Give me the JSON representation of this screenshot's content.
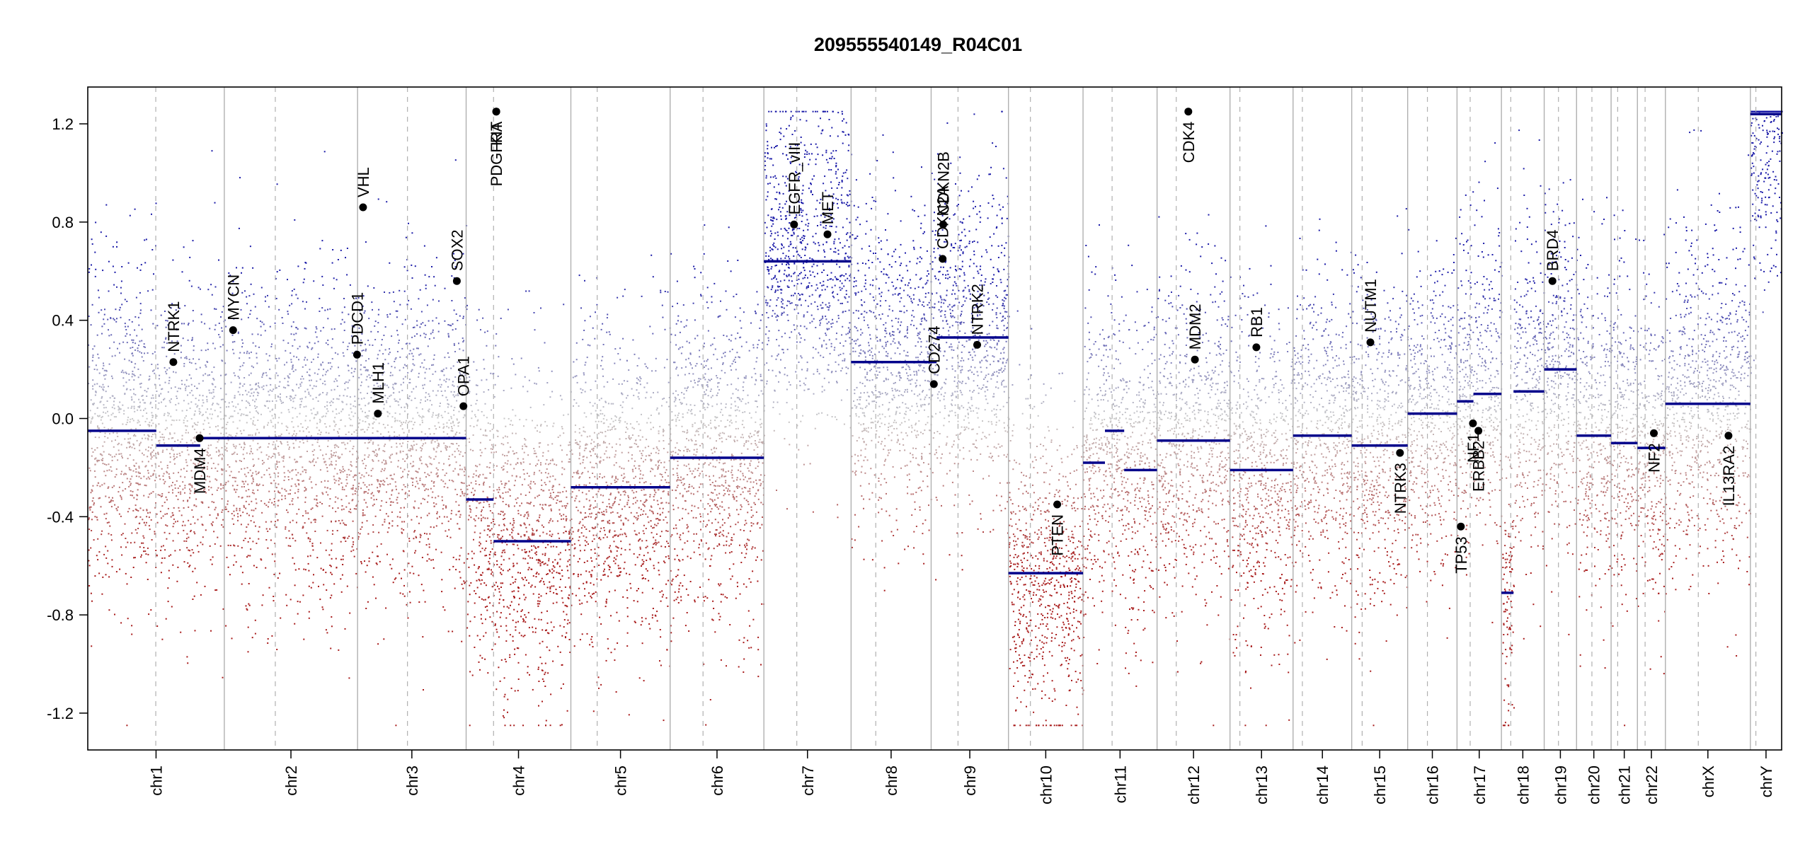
{
  "chart_data": {
    "type": "scatter",
    "title": "209555540149_R04C01",
    "xlabel": "",
    "ylabel": "",
    "ylim": [
      -1.35,
      1.35
    ],
    "yticks": [
      1.2,
      0.8,
      0.4,
      0.0,
      -0.4,
      -0.8,
      -1.2
    ],
    "ytick_labels": [
      "1.2",
      "0.8",
      "0.4",
      "0.0",
      "-0.4",
      "-0.8",
      "-1.2"
    ],
    "colors": {
      "gain": "#1a1aa8",
      "loss": "#a81a1a",
      "segment": "#00008b",
      "neutral": "#c8c8c8",
      "divider": "#b0b0b0"
    },
    "chromosomes": [
      {
        "name": "chr1",
        "length": 249,
        "centromere": 124,
        "segments": [
          {
            "start": 0,
            "end": 125,
            "value": -0.05
          },
          {
            "start": 125,
            "end": 205,
            "value": -0.11
          },
          {
            "start": 205,
            "end": 249,
            "value": -0.08
          }
        ]
      },
      {
        "name": "chr2",
        "length": 243,
        "centromere": 93,
        "segments": [
          {
            "start": 0,
            "end": 243,
            "value": -0.08
          }
        ]
      },
      {
        "name": "chr3",
        "length": 198,
        "centromere": 91,
        "segments": [
          {
            "start": 0,
            "end": 198,
            "value": -0.08
          }
        ]
      },
      {
        "name": "chr4",
        "length": 191,
        "centromere": 50,
        "segments": [
          {
            "start": 0,
            "end": 50,
            "value": -0.33
          },
          {
            "start": 50,
            "end": 191,
            "value": -0.5
          }
        ]
      },
      {
        "name": "chr5",
        "length": 181,
        "centromere": 48,
        "segments": [
          {
            "start": 0,
            "end": 181,
            "value": -0.28
          }
        ]
      },
      {
        "name": "chr6",
        "length": 171,
        "centromere": 60,
        "segments": [
          {
            "start": 0,
            "end": 171,
            "value": -0.16
          }
        ]
      },
      {
        "name": "chr7",
        "length": 159,
        "centromere": 60,
        "segments": [
          {
            "start": 0,
            "end": 159,
            "value": 0.64
          }
        ]
      },
      {
        "name": "chr8",
        "length": 146,
        "centromere": 45,
        "segments": [
          {
            "start": 0,
            "end": 146,
            "value": 0.23
          }
        ]
      },
      {
        "name": "chr9",
        "length": 141,
        "centromere": 49,
        "segments": [
          {
            "start": 0,
            "end": 10,
            "value": 0.23
          },
          {
            "start": 10,
            "end": 141,
            "value": 0.33
          }
        ]
      },
      {
        "name": "chr10",
        "length": 136,
        "centromere": 40,
        "segments": [
          {
            "start": 0,
            "end": 136,
            "value": -0.63
          }
        ]
      },
      {
        "name": "chr11",
        "length": 135,
        "centromere": 53,
        "segments": [
          {
            "start": 0,
            "end": 40,
            "value": -0.18
          },
          {
            "start": 40,
            "end": 75,
            "value": -0.05
          },
          {
            "start": 75,
            "end": 135,
            "value": -0.21
          }
        ]
      },
      {
        "name": "chr12",
        "length": 133,
        "centromere": 35,
        "segments": [
          {
            "start": 0,
            "end": 133,
            "value": -0.09
          }
        ]
      },
      {
        "name": "chr13",
        "length": 115,
        "centromere": 18,
        "segments": [
          {
            "start": 0,
            "end": 115,
            "value": -0.21
          }
        ]
      },
      {
        "name": "chr14",
        "length": 107,
        "centromere": 17,
        "segments": [
          {
            "start": 0,
            "end": 107,
            "value": -0.07
          }
        ]
      },
      {
        "name": "chr15",
        "length": 102,
        "centromere": 19,
        "segments": [
          {
            "start": 0,
            "end": 102,
            "value": -0.11
          }
        ]
      },
      {
        "name": "chr16",
        "length": 90,
        "centromere": 36,
        "segments": [
          {
            "start": 0,
            "end": 90,
            "value": 0.02
          }
        ]
      },
      {
        "name": "chr17",
        "length": 81,
        "centromere": 24,
        "segments": [
          {
            "start": 0,
            "end": 30,
            "value": 0.07
          },
          {
            "start": 30,
            "end": 81,
            "value": 0.1
          }
        ]
      },
      {
        "name": "chr18",
        "length": 78,
        "centromere": 17,
        "segments": [
          {
            "start": 0,
            "end": 22,
            "value": -0.71
          },
          {
            "start": 22,
            "end": 78,
            "value": 0.11
          }
        ]
      },
      {
        "name": "chr19",
        "length": 59,
        "centromere": 26,
        "segments": [
          {
            "start": 0,
            "end": 59,
            "value": 0.2
          }
        ]
      },
      {
        "name": "chr20",
        "length": 63,
        "centromere": 28,
        "segments": [
          {
            "start": 0,
            "end": 63,
            "value": -0.07
          }
        ]
      },
      {
        "name": "chr21",
        "length": 48,
        "centromere": 12,
        "segments": [
          {
            "start": 0,
            "end": 48,
            "value": -0.1
          }
        ]
      },
      {
        "name": "chr22",
        "length": 51,
        "centromere": 14,
        "segments": [
          {
            "start": 0,
            "end": 51,
            "value": -0.12
          }
        ]
      },
      {
        "name": "chrX",
        "length": 155,
        "centromere": 60,
        "segments": [
          {
            "start": 0,
            "end": 155,
            "value": 0.06
          }
        ]
      },
      {
        "name": "chrY",
        "length": 57,
        "centromere": 10,
        "segments": [
          {
            "start": 0,
            "end": 57,
            "value": 1.24
          }
        ]
      }
    ],
    "genes": [
      {
        "name": "NTRK1",
        "chrom": "chr1",
        "pos": 156,
        "value": 0.23,
        "label_side": "above"
      },
      {
        "name": "MDM4",
        "chrom": "chr1",
        "pos": 204,
        "value": -0.08,
        "label_side": "below"
      },
      {
        "name": "MYCN",
        "chrom": "chr2",
        "pos": 16,
        "value": 0.36,
        "label_side": "above"
      },
      {
        "name": "PDCD1",
        "chrom": "chr2",
        "pos": 242,
        "value": 0.26,
        "label_side": "above"
      },
      {
        "name": "VHL",
        "chrom": "chr3",
        "pos": 10,
        "value": 0.86,
        "label_side": "above"
      },
      {
        "name": "MLH1",
        "chrom": "chr3",
        "pos": 37,
        "value": 0.02,
        "label_side": "above"
      },
      {
        "name": "SOX2",
        "chrom": "chr3",
        "pos": 181,
        "value": 0.56,
        "label_side": "above"
      },
      {
        "name": "OPA1",
        "chrom": "chr3",
        "pos": 193,
        "value": 0.05,
        "label_side": "above"
      },
      {
        "name": "PDGFRA",
        "chrom": "chr4",
        "pos": 55,
        "value": 1.25,
        "label_side": "below"
      },
      {
        "name": "KIT",
        "chrom": "chr4",
        "pos": 55,
        "value": 1.25,
        "label_side": "below"
      },
      {
        "name": "EGFR_vIII",
        "chrom": "chr7",
        "pos": 55,
        "value": 0.79,
        "label_side": "above"
      },
      {
        "name": "MET",
        "chrom": "chr7",
        "pos": 116,
        "value": 0.75,
        "label_side": "above"
      },
      {
        "name": "CD274",
        "chrom": "chr9",
        "pos": 5,
        "value": 0.14,
        "label_side": "above"
      },
      {
        "name": "CDKN2A",
        "chrom": "chr9",
        "pos": 21,
        "value": 0.65,
        "label_side": "above"
      },
      {
        "name": "CDKN2B",
        "chrom": "chr9",
        "pos": 22,
        "value": 0.79,
        "label_side": "above"
      },
      {
        "name": "NTRK2",
        "chrom": "chr9",
        "pos": 84,
        "value": 0.3,
        "label_side": "above"
      },
      {
        "name": "PTEN",
        "chrom": "chr10",
        "pos": 89,
        "value": -0.35,
        "label_side": "below"
      },
      {
        "name": "CDK4",
        "chrom": "chr12",
        "pos": 57,
        "value": 1.25,
        "label_side": "below"
      },
      {
        "name": "MDM2",
        "chrom": "chr12",
        "pos": 69,
        "value": 0.24,
        "label_side": "above"
      },
      {
        "name": "RB1",
        "chrom": "chr13",
        "pos": 48,
        "value": 0.29,
        "label_side": "above"
      },
      {
        "name": "NUTM1",
        "chrom": "chr15",
        "pos": 34,
        "value": 0.31,
        "label_side": "above"
      },
      {
        "name": "NTRK3",
        "chrom": "chr15",
        "pos": 88,
        "value": -0.14,
        "label_side": "below"
      },
      {
        "name": "TP53",
        "chrom": "chr17",
        "pos": 7,
        "value": -0.44,
        "label_side": "below"
      },
      {
        "name": "NF1",
        "chrom": "chr17",
        "pos": 29,
        "value": -0.02,
        "label_side": "below"
      },
      {
        "name": "ERBB2",
        "chrom": "chr17",
        "pos": 39,
        "value": -0.05,
        "label_side": "below"
      },
      {
        "name": "BRD4",
        "chrom": "chr19",
        "pos": 15,
        "value": 0.56,
        "label_side": "above"
      },
      {
        "name": "NF2",
        "chrom": "chr22",
        "pos": 30,
        "value": -0.06,
        "label_side": "below"
      },
      {
        "name": "IL13RA2",
        "chrom": "chrX",
        "pos": 115,
        "value": -0.07,
        "label_side": "below"
      }
    ]
  }
}
